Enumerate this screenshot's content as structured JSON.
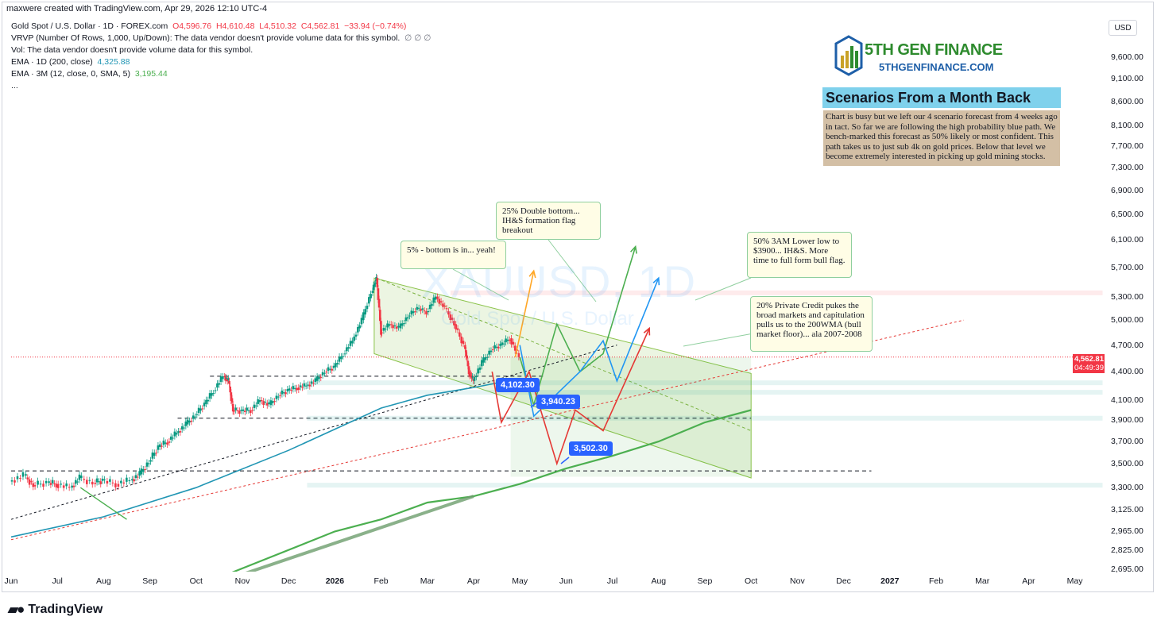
{
  "header": {
    "created": "maxwere created with TradingView.com, Apr 29, 2026 12:10 UTC-4"
  },
  "legend": {
    "symbol": "Gold Spot / U.S. Dollar · 1D · FOREX.com",
    "open": "O4,596.76",
    "high": "H4,610.48",
    "low": "L4,510.32",
    "close": "C4,562.81",
    "change": "−33.94 (−0.74%)",
    "vrvp": "VRVP (Number Of Rows, 1,000, Up/Down): The data vendor doesn't provide volume data for this symbol.",
    "vrvp_flags": "∅ ∅ ∅",
    "vol": "Vol: The data vendor doesn't provide volume data for this symbol.",
    "ema1_label": "EMA · 1D (200, close)",
    "ema1_value": "4,325.88",
    "ema2_label": "EMA · 3M (12, close, 0, SMA, 5)",
    "ema2_value": "3,195.44",
    "more": "..."
  },
  "currency": "USD",
  "last_price": {
    "value": "4,562.81",
    "countdown": "04:49:39",
    "symbol": "XAUUSD"
  },
  "watermark": {
    "symbol": "XAUUSD, 1D",
    "name": "Gold Spot / U.S. Dollar"
  },
  "logo": {
    "title": "5TH GEN FINANCE",
    "url": "5THGENFINANCE.COM"
  },
  "scenarios": {
    "title": "Scenarios From a Month Back",
    "body": "Chart is busy but we left our 4 scenario forecast from 4 weeks ago in tact.  So far we are following the high probability blue path.  We bench-marked this forecast as 50% likely or most confident.  This path takes us to just sub 4k on gold prices.  Below that level we become extremely interested in picking up gold mining stocks."
  },
  "callouts": {
    "yellow": "5% - bottom is in... yeah!",
    "green": "25% Double bottom... IH&S formation flag breakout",
    "blue": "50% 3AM Lower low to $3900... IH&S.  More time to full form bull flag.",
    "red": "20% Private Credit pukes the broad markets and capitulation pulls us to the 200WMA (bull market floor)... ala 2007-2008"
  },
  "labels": {
    "l1": "4,102.30",
    "l2": "3,940.23",
    "l3": "3,502.30"
  },
  "brand": "TradingView",
  "colors": {
    "up": "#089981",
    "down": "#f23645",
    "ema200": "#2196b4",
    "ema3m": "#4caf50",
    "channel": "#8bc34a",
    "yellow_path": "#ffa726",
    "green_path": "#4caf50",
    "blue_path": "#2196f3",
    "red_path": "#e53935",
    "label_bg": "#2962ff"
  },
  "chart_data": {
    "type": "candlestick",
    "symbol": "XAUUSD",
    "timeframe": "1D",
    "y_scale": "log",
    "ylim": [
      2695,
      9600
    ],
    "y_ticks": [
      9600,
      9100,
      8600,
      8100,
      7700,
      7300,
      6900,
      6500,
      6100,
      5700,
      5300,
      5000,
      4700,
      4400,
      4100,
      3900,
      3700,
      3500,
      3300,
      3125,
      2965,
      2825,
      2695
    ],
    "y_tick_labels": [
      "9,600.00",
      "9,100.00",
      "8,600.00",
      "8,100.00",
      "7,700.00",
      "7,300.00",
      "6,900.00",
      "6,500.00",
      "6,100.00",
      "5,700.00",
      "5,300.00",
      "5,000.00",
      "4,700.00",
      "4,400.00",
      "4,100.00",
      "3,900.00",
      "3,700.00",
      "3,500.00",
      "3,300.00",
      "3,125.00",
      "2,965.00",
      "2,825.00",
      "2,695.00"
    ],
    "x_ticks": [
      {
        "label": "Jun",
        "t": 0
      },
      {
        "label": "Jul",
        "t": 1
      },
      {
        "label": "Aug",
        "t": 2
      },
      {
        "label": "Sep",
        "t": 3
      },
      {
        "label": "Oct",
        "t": 4
      },
      {
        "label": "Nov",
        "t": 5
      },
      {
        "label": "Dec",
        "t": 6
      },
      {
        "label": "2026",
        "t": 7,
        "bold": true
      },
      {
        "label": "Feb",
        "t": 8
      },
      {
        "label": "Mar",
        "t": 9
      },
      {
        "label": "Apr",
        "t": 10
      },
      {
        "label": "May",
        "t": 11
      },
      {
        "label": "Jun",
        "t": 12
      },
      {
        "label": "Jul",
        "t": 13
      },
      {
        "label": "Aug",
        "t": 14
      },
      {
        "label": "Sep",
        "t": 15
      },
      {
        "label": "Oct",
        "t": 16
      },
      {
        "label": "Nov",
        "t": 17
      },
      {
        "label": "Dec",
        "t": 18
      },
      {
        "label": "2027",
        "t": 19,
        "bold": true
      },
      {
        "label": "Feb",
        "t": 20
      },
      {
        "label": "Mar",
        "t": 21
      },
      {
        "label": "Apr",
        "t": 22
      },
      {
        "label": "May",
        "t": 23
      }
    ],
    "price_path": [
      [
        0.0,
        3350
      ],
      [
        0.3,
        3400
      ],
      [
        0.5,
        3320
      ],
      [
        0.8,
        3340
      ],
      [
        1.0,
        3330
      ],
      [
        1.3,
        3300
      ],
      [
        1.5,
        3380
      ],
      [
        1.8,
        3340
      ],
      [
        2.0,
        3360
      ],
      [
        2.3,
        3330
      ],
      [
        2.6,
        3360
      ],
      [
        2.8,
        3410
      ],
      [
        3.0,
        3520
      ],
      [
        3.2,
        3650
      ],
      [
        3.4,
        3700
      ],
      [
        3.6,
        3780
      ],
      [
        3.8,
        3860
      ],
      [
        4.0,
        3950
      ],
      [
        4.2,
        4060
      ],
      [
        4.4,
        4200
      ],
      [
        4.6,
        4350
      ],
      [
        4.7,
        4300
      ],
      [
        4.8,
        4000
      ],
      [
        5.0,
        3990
      ],
      [
        5.2,
        4000
      ],
      [
        5.4,
        4100
      ],
      [
        5.6,
        4050
      ],
      [
        5.8,
        4150
      ],
      [
        6.0,
        4200
      ],
      [
        6.2,
        4230
      ],
      [
        6.4,
        4250
      ],
      [
        6.6,
        4300
      ],
      [
        6.8,
        4400
      ],
      [
        7.0,
        4450
      ],
      [
        7.2,
        4600
      ],
      [
        7.4,
        4750
      ],
      [
        7.6,
        5000
      ],
      [
        7.8,
        5350
      ],
      [
        7.9,
        5550
      ],
      [
        8.0,
        4850
      ],
      [
        8.2,
        4950
      ],
      [
        8.4,
        4900
      ],
      [
        8.6,
        5050
      ],
      [
        8.8,
        5150
      ],
      [
        9.0,
        5100
      ],
      [
        9.2,
        5300
      ],
      [
        9.4,
        5150
      ],
      [
        9.6,
        4950
      ],
      [
        9.8,
        4700
      ],
      [
        9.9,
        4400
      ],
      [
        10.0,
        4300
      ],
      [
        10.2,
        4500
      ],
      [
        10.4,
        4650
      ],
      [
        10.6,
        4700
      ],
      [
        10.8,
        4780
      ],
      [
        11.0,
        4562
      ]
    ],
    "ema_200d": [
      [
        0,
        2920
      ],
      [
        2,
        3070
      ],
      [
        4,
        3300
      ],
      [
        6,
        3620
      ],
      [
        8,
        4020
      ],
      [
        9,
        4150
      ],
      [
        10,
        4230
      ],
      [
        11,
        4326
      ]
    ],
    "ema_3m": [
      [
        4,
        2580
      ],
      [
        7,
        2960
      ],
      [
        8,
        3050
      ],
      [
        9,
        3180
      ],
      [
        10,
        3230
      ],
      [
        11,
        3330
      ],
      [
        12,
        3460
      ],
      [
        13,
        3570
      ],
      [
        14,
        3700
      ],
      [
        15,
        3880
      ],
      [
        16,
        4000
      ]
    ],
    "scenario_paths": [
      {
        "label": "5% - bottom is in... yeah!",
        "points": [
          [
            10.9,
            4562
          ],
          [
            11.3,
            5650
          ]
        ]
      },
      {
        "label": "25% Double bottom... IH&S formation flag breakout",
        "points": [
          [
            11.0,
            4562
          ],
          [
            11.3,
            4050
          ],
          [
            11.8,
            4950
          ],
          [
            12.3,
            4400
          ],
          [
            12.8,
            4600
          ],
          [
            13.5,
            6000
          ]
        ]
      },
      {
        "label": "50% 3AM Lower low to $3900... IH&S.  More time to full form bull flag.",
        "points": [
          [
            11.0,
            4700
          ],
          [
            11.3,
            3940
          ],
          [
            12.3,
            4400
          ],
          [
            12.8,
            4750
          ],
          [
            13.1,
            4300
          ],
          [
            14.0,
            5550
          ]
        ]
      },
      {
        "label": "20% Private Credit pukes the broad markets and capitulation pulls us to the 200WMA (bull market floor)... ala 2007-2008",
        "points": [
          [
            10.4,
            4400
          ],
          [
            10.6,
            3880
          ],
          [
            11.2,
            4400
          ],
          [
            11.8,
            3502
          ],
          [
            12.2,
            4000
          ],
          [
            12.8,
            3800
          ],
          [
            13.8,
            4900
          ]
        ]
      }
    ],
    "levels": [
      4102.3,
      3940.23,
      3502.3
    ],
    "last_close": 4562.81,
    "grid": false,
    "title": "",
    "xlabel": "",
    "ylabel": ""
  }
}
